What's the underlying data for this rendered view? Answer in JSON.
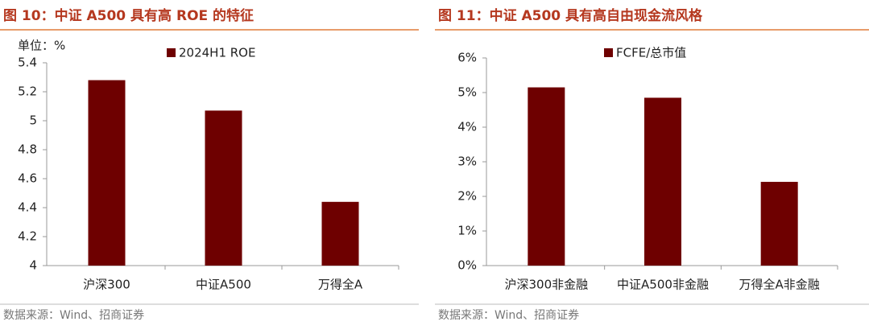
{
  "chart_data": [
    {
      "type": "bar",
      "title": "图 10：中证 A500 具有高 ROE 的特征",
      "unit_label": "单位：%",
      "categories": [
        "沪深300",
        "中证A500",
        "万得全A"
      ],
      "series": [
        {
          "name": "2024H1 ROE",
          "color": "#6e0000",
          "values": [
            5.28,
            5.07,
            4.44
          ]
        }
      ],
      "ylim": [
        4,
        5.4
      ],
      "yticks": [
        4,
        4.2,
        4.4,
        4.6,
        4.8,
        5,
        5.2,
        5.4
      ],
      "source": "数据来源：Wind、招商证券"
    },
    {
      "type": "bar",
      "title": "图 11：中证 A500 具有高自由现金流风格",
      "categories": [
        "沪深300非金融",
        "中证A500非金融",
        "万得全A非金融"
      ],
      "series": [
        {
          "name": "FCFE/总市值",
          "color": "#6e0000",
          "values": [
            5.15,
            4.85,
            2.42
          ]
        }
      ],
      "ylim": [
        0,
        6
      ],
      "yticks": [
        {
          "value": 0,
          "label": "0%"
        },
        {
          "value": 1,
          "label": "1%"
        },
        {
          "value": 2,
          "label": "2%"
        },
        {
          "value": 3,
          "label": "3%"
        },
        {
          "value": 4,
          "label": "4%"
        },
        {
          "value": 5,
          "label": "5%"
        },
        {
          "value": 6,
          "label": "6%"
        }
      ],
      "source": "数据来源：Wind、招商证券"
    }
  ]
}
